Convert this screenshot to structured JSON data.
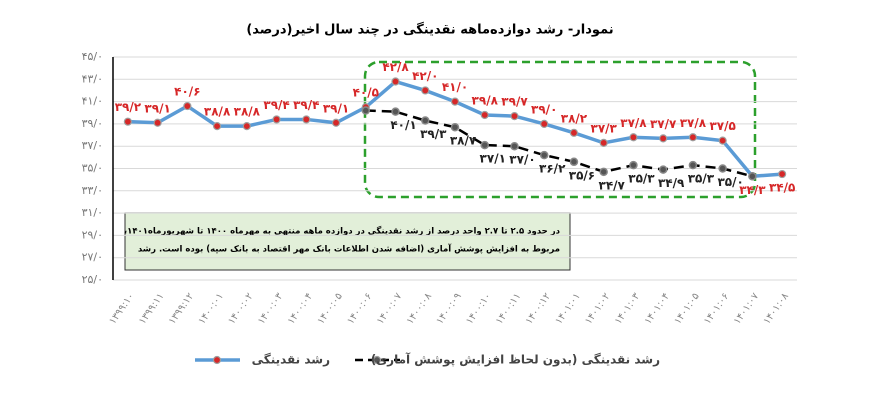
{
  "chart_data": {
    "type": "line",
    "title": "نمودار- رشد دوازده‌ماهه نقدینگی در چند سال اخیر(درصد)",
    "categories": [
      "۱۳۹۹:۱۰",
      "۱۳۹۹:۱۱",
      "۱۳۹۹:۱۲",
      "۱۴۰۰:۰۱",
      "۱۴۰۰:۰۲",
      "۱۴۰۰:۰۳",
      "۱۴۰۰:۰۴",
      "۱۴۰۰:۰۵",
      "۱۴۰۰:۰۶",
      "۱۴۰۰:۰۷",
      "۱۴۰۰:۰۸",
      "۱۴۰۰:۰۹",
      "۱۴۰۰:۱۰",
      "۱۴۰۰:۱۱",
      "۱۴۰۰:۱۲",
      "۱۴۰۱:۰۱",
      "۱۴۰۱:۰۲",
      "۱۴۰۱:۰۳",
      "۱۴۰۱:۰۴",
      "۱۴۰۱:۰۵",
      "۱۴۰۱:۰۶",
      "۱۴۰۱:۰۷",
      "۱۴۰۱:۰۸"
    ],
    "series": [
      {
        "name": "رشد نقدینگی",
        "color": "#5b9bd5",
        "marker_color": "#d62728",
        "values": [
          39.2,
          39.1,
          40.6,
          38.8,
          38.8,
          39.4,
          39.4,
          39.1,
          40.5,
          42.8,
          42.0,
          41.0,
          39.8,
          39.7,
          39.0,
          38.2,
          37.3,
          37.8,
          37.7,
          37.8,
          37.5,
          34.3,
          34.5
        ],
        "value_labels": [
          "۳۹/۲",
          "۳۹/۱",
          "۴۰/۶",
          "۳۸/۸",
          "۳۸/۸",
          "۳۹/۴",
          "۳۹/۴",
          "۳۹/۱",
          "۴۰/۵",
          "۴۲/۸",
          "۴۲/۰",
          "۴۱/۰",
          "۳۹/۸",
          "۳۹/۷",
          "۳۹/۰",
          "۳۸/۲",
          "۳۷/۳",
          "۳۷/۸",
          "۳۷/۷",
          "۳۷/۸",
          "۳۷/۵",
          "۳۴/۳",
          "۳۴/۵"
        ]
      },
      {
        "name": "رشد نقدینگی (بدون لحاظ افزایش پوشش آماری)",
        "color": "#000000",
        "dashed": true,
        "values": [
          null,
          null,
          null,
          null,
          null,
          null,
          null,
          null,
          40.2,
          40.1,
          39.3,
          38.7,
          37.1,
          37.0,
          36.2,
          35.6,
          34.7,
          35.3,
          34.9,
          35.3,
          35.0,
          34.3,
          null
        ],
        "value_labels": [
          null,
          null,
          null,
          null,
          null,
          null,
          null,
          null,
          null,
          "۴۰/۱",
          "۳۹/۳",
          "۳۸/۷",
          "۳۷/۱",
          "۳۷/۰",
          "۳۶/۲",
          "۳۵/۶",
          "۳۴/۷",
          "۳۵/۳",
          "۳۴/۹",
          "۳۵/۳",
          "۳۵/۰",
          null,
          null
        ]
      }
    ],
    "ylim": [
      25,
      45
    ],
    "yticks": [
      {
        "value": 25,
        "label": "۲۵/۰"
      },
      {
        "value": 27,
        "label": "۲۷/۰"
      },
      {
        "value": 29,
        "label": "۲۹/۰"
      },
      {
        "value": 31,
        "label": "۳۱/۰"
      },
      {
        "value": 33,
        "label": "۳۳/۰"
      },
      {
        "value": 35,
        "label": "۳۵/۰"
      },
      {
        "value": 37,
        "label": "۳۷/۰"
      },
      {
        "value": 39,
        "label": "۳۹/۰"
      },
      {
        "value": 41,
        "label": "۴۱/۰"
      },
      {
        "value": 43,
        "label": "۴۳/۰"
      },
      {
        "value": 45,
        "label": "۴۵/۰"
      }
    ],
    "grid": true,
    "annotations": [
      "در حدود ۲.۵ تا ۲.۷ واحد درصد از رشد نقدینگی در دوازده ماهه منتهی به مهرماه ۱۴۰۰ تا شهریورماه۱۴۰۱،",
      "مربوط به افزایش پوشش آماری (اضافه شدن اطلاعات بانک مهر اقتصاد به بانک سپه) بوده است. رشد"
    ]
  }
}
